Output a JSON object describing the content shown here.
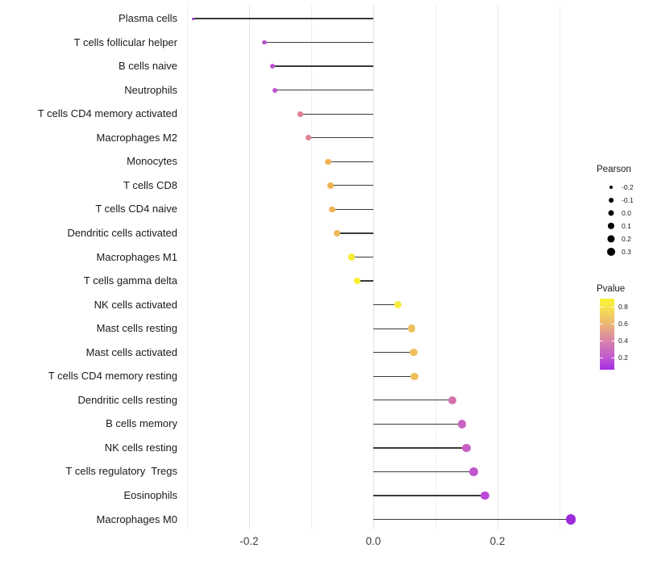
{
  "chart_data": {
    "type": "scatter",
    "variant": "lollipop",
    "title": "",
    "xlabel": "",
    "ylabel": "",
    "x_tick_labels": [
      "-0.2",
      "0.0",
      "0.2"
    ],
    "x_tick_values": [
      -0.2,
      0.0,
      0.2
    ],
    "x_gridline_values": [
      -0.3,
      -0.2,
      -0.1,
      0.0,
      0.1,
      0.2,
      0.3
    ],
    "xlim": [
      -0.305,
      0.345
    ],
    "grid": "vertical only, light gray",
    "legend_position": "right",
    "points": [
      {
        "label": "Plasma cells",
        "pearson": -0.29,
        "pvalue": 0.07,
        "color": "#9c2fd1"
      },
      {
        "label": "T cells follicular helper",
        "pearson": -0.175,
        "pvalue": 0.21,
        "color": "#b953cb"
      },
      {
        "label": "B cells naive",
        "pearson": -0.162,
        "pvalue": 0.22,
        "color": "#ba53cb"
      },
      {
        "label": "Neutrophils",
        "pearson": -0.158,
        "pvalue": 0.22,
        "color": "#ba55ca"
      },
      {
        "label": "T cells CD4 memory activated",
        "pearson": -0.118,
        "pvalue": 0.5,
        "color": "#dd7e95"
      },
      {
        "label": "Macrophages M2",
        "pearson": -0.105,
        "pvalue": 0.51,
        "color": "#dd8090"
      },
      {
        "label": "Monocytes",
        "pearson": -0.073,
        "pvalue": 0.65,
        "color": "#eeb152"
      },
      {
        "label": "T cells CD8",
        "pearson": -0.069,
        "pvalue": 0.65,
        "color": "#eeb152"
      },
      {
        "label": "T cells CD4 naive",
        "pearson": -0.066,
        "pvalue": 0.66,
        "color": "#efb354"
      },
      {
        "label": "Dendritic cells activated",
        "pearson": -0.058,
        "pvalue": 0.68,
        "color": "#eeba5c"
      },
      {
        "label": "Macrophages M1",
        "pearson": -0.035,
        "pvalue": 0.85,
        "color": "#f8ed32"
      },
      {
        "label": "T cells gamma delta",
        "pearson": -0.026,
        "pvalue": 0.86,
        "color": "#f9ee2e"
      },
      {
        "label": "NK cells activated",
        "pearson": 0.04,
        "pvalue": 0.84,
        "color": "#f6ed3c"
      },
      {
        "label": "Mast cells resting",
        "pearson": 0.062,
        "pvalue": 0.7,
        "color": "#edc05e"
      },
      {
        "label": "Mast cells activated",
        "pearson": 0.065,
        "pvalue": 0.7,
        "color": "#edc05e"
      },
      {
        "label": "T cells CD4 memory resting",
        "pearson": 0.066,
        "pvalue": 0.71,
        "color": "#ecbf5c"
      },
      {
        "label": "Dendritic cells resting",
        "pearson": 0.127,
        "pvalue": 0.38,
        "color": "#d172ae"
      },
      {
        "label": "B cells memory",
        "pearson": 0.143,
        "pvalue": 0.3,
        "color": "#c864c3"
      },
      {
        "label": "NK cells resting",
        "pearson": 0.15,
        "pvalue": 0.28,
        "color": "#c75fc7"
      },
      {
        "label": "T cells regulatory  Tregs",
        "pearson": 0.162,
        "pvalue": 0.24,
        "color": "#c159cf"
      },
      {
        "label": "Eosinophils",
        "pearson": 0.18,
        "pvalue": 0.18,
        "color": "#bb49da"
      },
      {
        "label": "Macrophages M0",
        "pearson": 0.318,
        "pvalue": 0.05,
        "color": "#9d2bdb"
      }
    ],
    "legend": {
      "size": {
        "title": "Pearson",
        "entries": [
          {
            "label": "-0.2",
            "value": -0.2
          },
          {
            "label": "-0.1",
            "value": -0.1
          },
          {
            "label": "0.0",
            "value": 0.0
          },
          {
            "label": "0.1",
            "value": 0.1
          },
          {
            "label": "0.2",
            "value": 0.2
          },
          {
            "label": "0.3",
            "value": 0.3
          }
        ]
      },
      "color": {
        "title": "Pvalue",
        "tick_labels": [
          "0.8",
          "0.6",
          "0.4",
          "0.2"
        ],
        "tick_values": [
          0.8,
          0.6,
          0.4,
          0.2
        ],
        "range": [
          0.06,
          0.89
        ],
        "gradient_stops": [
          {
            "p": 0.06,
            "color": "#a32ce2"
          },
          {
            "p": 0.2,
            "color": "#c058cf"
          },
          {
            "p": 0.4,
            "color": "#da84ab"
          },
          {
            "p": 0.6,
            "color": "#ecb873"
          },
          {
            "p": 0.8,
            "color": "#f7e54b"
          },
          {
            "p": 0.89,
            "color": "#f9f22f"
          }
        ]
      }
    },
    "stem_color": "#3a3a3a",
    "background_color": "#ffffff"
  }
}
